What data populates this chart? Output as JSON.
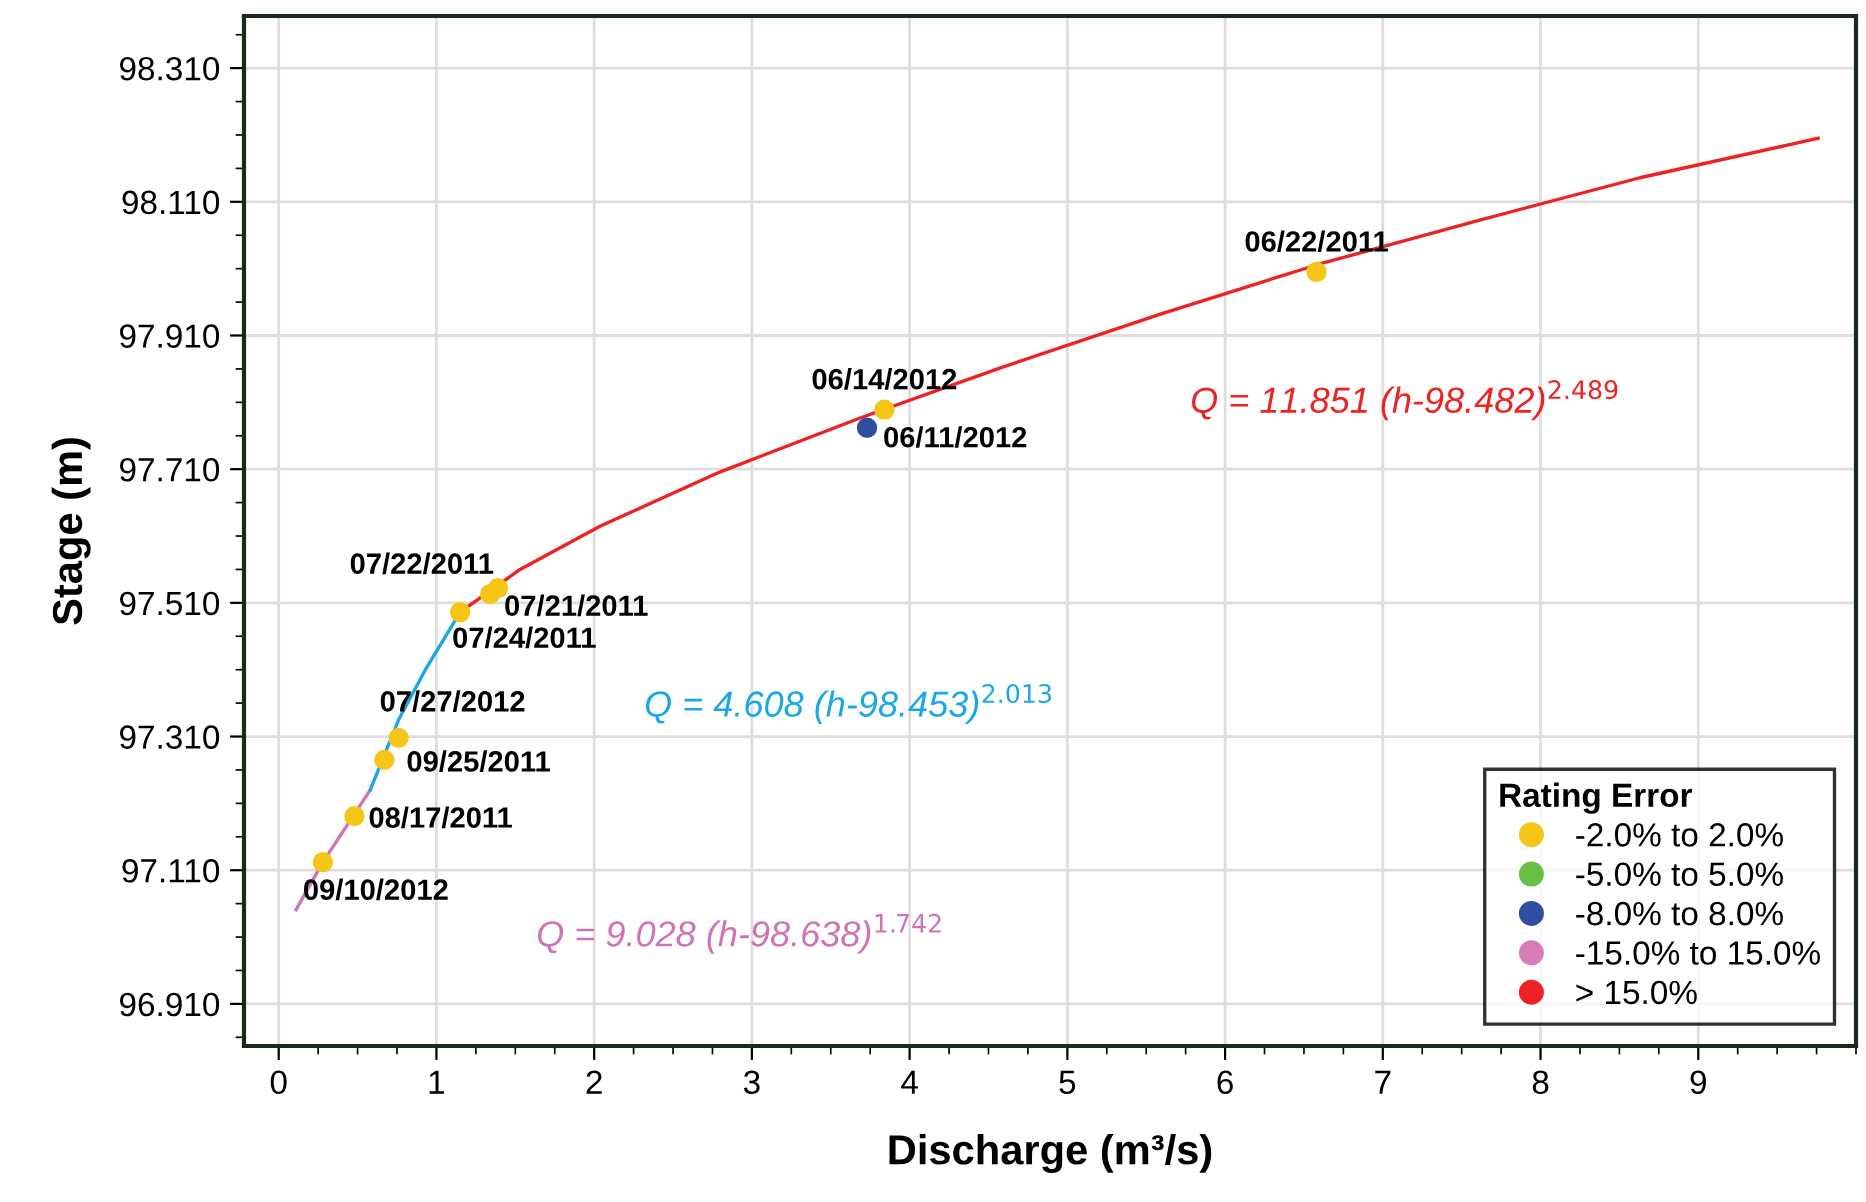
{
  "chart_data": {
    "type": "scatter",
    "xlabel": "Discharge (m³/s)",
    "ylabel": "Stage (m)",
    "legend_title": "Rating Error",
    "xlim": [
      -0.22,
      10.0
    ],
    "xticks": [
      0,
      1,
      2,
      3,
      4,
      5,
      6,
      7,
      8,
      9
    ],
    "ylim": [
      96.847,
      98.388
    ],
    "yticks": [
      {
        "value": 96.91,
        "label": "96.910"
      },
      {
        "value": 97.11,
        "label": "97.110"
      },
      {
        "value": 97.31,
        "label": "97.310"
      },
      {
        "value": 97.51,
        "label": "97.510"
      },
      {
        "value": 97.71,
        "label": "97.710"
      },
      {
        "value": 97.91,
        "label": "97.910"
      },
      {
        "value": 98.11,
        "label": "98.110"
      },
      {
        "value": 98.31,
        "label": "98.310"
      }
    ],
    "grid": true,
    "legend": "bottom right",
    "series": [
      {
        "type": "line",
        "marker": "none",
        "name": "Q = 9.028 (h-98.638)$^{1.742}$",
        "color": "#cf73b5",
        "x": [
          0.11,
          0.28,
          0.48,
          0.58
        ],
        "values": [
          97.051,
          97.122,
          97.194,
          97.23
        ]
      },
      {
        "type": "line",
        "marker": "none",
        "name": "Q = 4.608 (h-98.453)$^{2.013}$",
        "color": "#1aa7e8",
        "x": [
          0.58,
          0.76,
          0.93,
          1.15
        ],
        "values": [
          97.23,
          97.335,
          97.41,
          97.496
        ]
      },
      {
        "type": "line",
        "marker": "none",
        "name": "Q = 11.851 (h-98.482)$^{2.489}$",
        "color": "#ee2222",
        "x": [
          1.15,
          1.53,
          2.04,
          2.8,
          3.69,
          4.58,
          5.59,
          6.6,
          7.62,
          8.63,
          9.76
        ],
        "values": [
          97.496,
          97.56,
          97.625,
          97.706,
          97.787,
          97.862,
          97.942,
          98.017,
          98.083,
          98.146,
          98.205
        ]
      },
      {
        "marker": "circle",
        "name": "-2.0% to 2.0%",
        "color": "#f5c518",
        "x": [
          6.58,
          3.84,
          1.39,
          1.34,
          1.15,
          0.76,
          0.67,
          0.48,
          0.28
        ],
        "values": [
          98.005,
          97.799,
          97.532,
          97.523,
          97.496,
          97.308,
          97.275,
          97.191,
          97.122
        ]
      },
      {
        "marker": "circle",
        "name": "-5.0% to 5.0%",
        "color": "#6abf45"
      },
      {
        "marker": "circle",
        "name": "-8.0% to 8.0%",
        "color": "#2e4fa0",
        "x": [
          3.73
        ],
        "values": [
          97.772
        ]
      },
      {
        "marker": "circle",
        "name": "-15.0% to 15.0%",
        "color": "#d67db8"
      },
      {
        "marker": "circle",
        "name": "> 15.0%",
        "color": "#ee2222"
      }
    ],
    "annotations": [
      {
        "text": "06/22/2011",
        "x": 6.58,
        "y": 98.005
      },
      {
        "text": "06/14/2012",
        "x": 3.84,
        "y": 97.799
      },
      {
        "text": "06/11/2012",
        "x": 3.73,
        "y": 97.772
      },
      {
        "text": "07/22/2011",
        "x": 1.39,
        "y": 97.532
      },
      {
        "text": "07/21/2011",
        "x": 1.34,
        "y": 97.523
      },
      {
        "text": "07/24/2011",
        "x": 1.15,
        "y": 97.496
      },
      {
        "text": "07/27/2012",
        "x": 0.76,
        "y": 97.308
      },
      {
        "text": "09/25/2011",
        "x": 0.67,
        "y": 97.275
      },
      {
        "text": "08/17/2011",
        "x": 0.48,
        "y": 97.191
      },
      {
        "text": "09/10/2012",
        "x": 0.28,
        "y": 97.122
      }
    ]
  }
}
